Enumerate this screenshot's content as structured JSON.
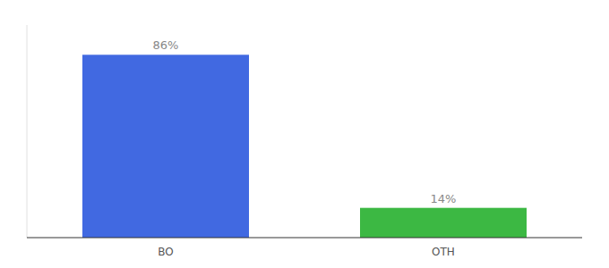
{
  "chart_data": {
    "type": "bar",
    "categories": [
      "BO",
      "OTH"
    ],
    "values": [
      86,
      14
    ],
    "value_labels": [
      "86%",
      "14%"
    ],
    "colors": [
      "#4169E1",
      "#3CB843"
    ],
    "ylim": [
      0,
      100
    ],
    "data_labels": true,
    "tick_labels": "x",
    "grid": false
  }
}
